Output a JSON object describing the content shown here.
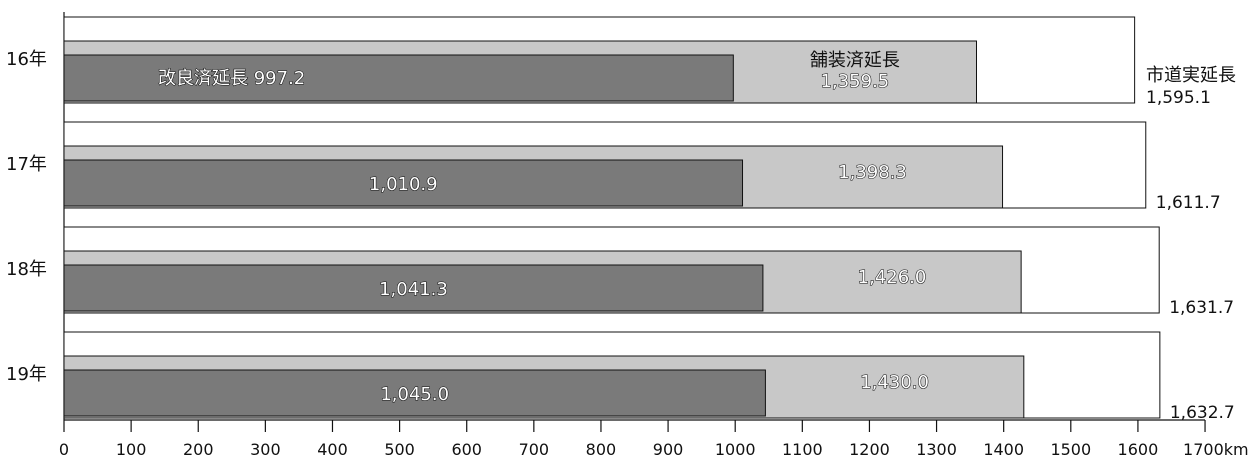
{
  "chart_data": {
    "type": "bar",
    "orientation": "horizontal",
    "categories": [
      "16年",
      "17年",
      "18年",
      "19年"
    ],
    "series": [
      {
        "name": "市道実延長",
        "values": [
          1595.1,
          1611.7,
          1631.7,
          1632.7
        ],
        "labels": [
          "1,595.1",
          "1,611.7",
          "1,631.7",
          "1,632.7"
        ],
        "color": "#ffffff"
      },
      {
        "name": "舗装済延長",
        "values": [
          1359.5,
          1398.3,
          1426.0,
          1430.0
        ],
        "labels": [
          "1,359.5",
          "1,398.3",
          "1,426.0",
          "1,430.0"
        ],
        "color": "#c8c8c8"
      },
      {
        "name": "改良済延長",
        "values": [
          997.2,
          1010.9,
          1041.3,
          1045.0
        ],
        "labels": [
          "997.2",
          "1,010.9",
          "1,041.3",
          "1,045.0"
        ],
        "color": "#7a7a7a"
      }
    ],
    "x_ticks": [
      "0",
      "100",
      "200",
      "300",
      "400",
      "500",
      "600",
      "700",
      "800",
      "900",
      "1000",
      "1100",
      "1200",
      "1300",
      "1400",
      "1500",
      "1600",
      "1700"
    ],
    "x_unit": "km",
    "xlim": [
      0,
      1700
    ],
    "grid": false,
    "legend": "inline labels on first category"
  }
}
